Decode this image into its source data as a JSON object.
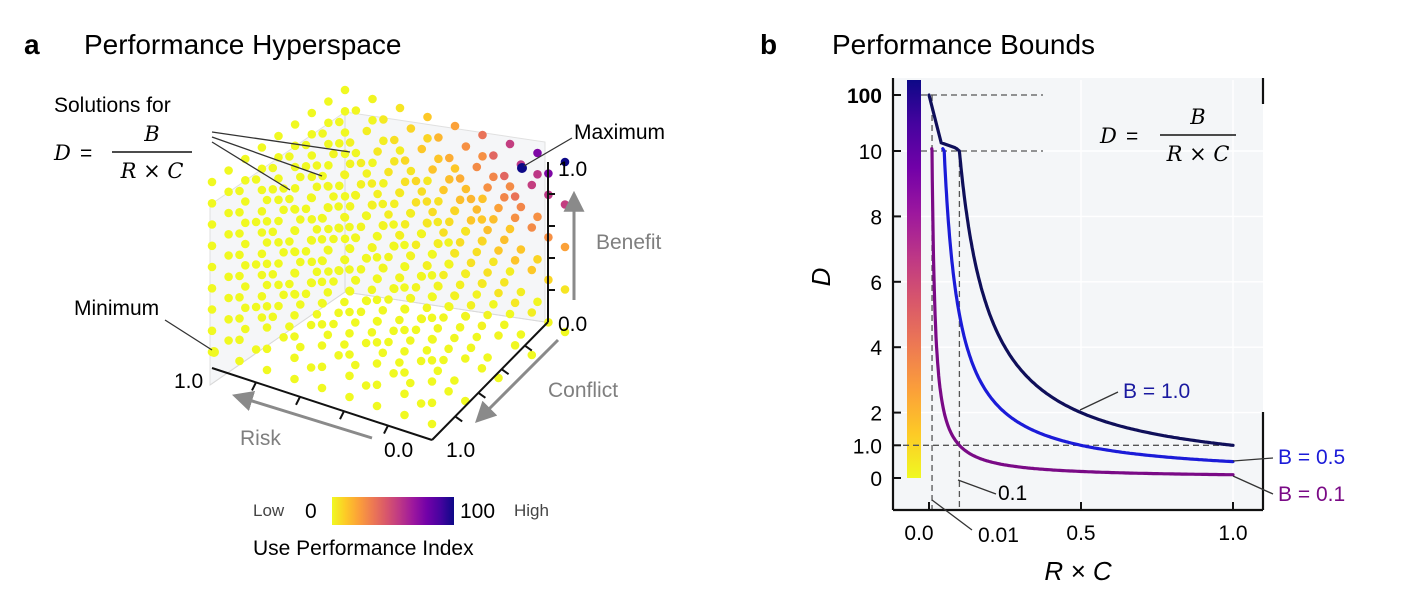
{
  "panel_a": {
    "letter": "a",
    "title": "Performance Hyperspace",
    "solutions_label": "Solutions for",
    "equation": {
      "lhs": "D",
      "eq": "=",
      "num": "B",
      "den": "R × C"
    },
    "maximum_label": "Maximum",
    "minimum_label": "Minimum",
    "axes": {
      "benefit": {
        "label": "Benefit",
        "start": "0.0",
        "end": "1.0"
      },
      "conflict": {
        "label": "Conflict",
        "end": "1.0"
      },
      "risk": {
        "label": "Risk",
        "start": "0.0",
        "end": "1.0"
      }
    },
    "colorbar": {
      "title": "Use Performance Index",
      "low_word": "Low",
      "high_word": "High",
      "min": "0",
      "max": "100",
      "colors": [
        "#f0f921",
        "#fdca26",
        "#fb9f3a",
        "#ed7953",
        "#d8576b",
        "#bd3786",
        "#9c179e",
        "#7201a8",
        "#46039f",
        "#0d0887"
      ]
    }
  },
  "panel_b": {
    "letter": "b",
    "title": "Performance Bounds",
    "equation": {
      "lhs": "D",
      "eq": "=",
      "num": "B",
      "den": "R × C"
    },
    "xlabel": "R × C",
    "ylabel": "D",
    "annotation_01": "0.1",
    "annotation_001": "0.01"
  },
  "chart_data": [
    {
      "type": "scatter",
      "title": "Performance Hyperspace",
      "axes": [
        "Risk",
        "Conflict",
        "Benefit"
      ],
      "range": [
        0.0,
        1.0
      ],
      "grid_points_per_axis": 9,
      "value_formula": "Use Performance Index rises toward the Maximum corner (high Benefit, low Risk, low Conflict); Minimum at high Risk, high Conflict, low Benefit",
      "colormap": "plasma (0 = Low, 100 = High)",
      "labeled_points": [
        {
          "label": "Maximum",
          "risk": 0.0,
          "conflict": 0.0,
          "benefit": 1.0,
          "index": 100
        },
        {
          "label": "Minimum",
          "risk": 1.0,
          "conflict": 1.0,
          "benefit": 0.0,
          "index": 0
        }
      ]
    },
    {
      "type": "line",
      "title": "Performance Bounds",
      "xlabel": "R × C",
      "ylabel": "D",
      "xticks": [
        "0.0",
        "0.01",
        "0.1",
        "0.5",
        "1.0"
      ],
      "yticks": [
        "0",
        "1.0",
        "2",
        "4",
        "6",
        "8",
        "10",
        "100"
      ],
      "xlim": [
        0.0,
        1.0
      ],
      "ylim": [
        0,
        100
      ],
      "scale_note": "y axis linear from 0 to 10 with a compressed break to 100",
      "series": [
        {
          "name": "B = 1.0",
          "color": "#0f0f5a",
          "x": [
            0.01,
            0.02,
            0.05,
            0.1,
            0.2,
            0.3,
            0.5,
            0.7,
            1.0
          ],
          "y": [
            100,
            50,
            20,
            10,
            5,
            3.33,
            2,
            1.43,
            1.0
          ]
        },
        {
          "name": "B = 0.5",
          "color": "#1b1bd8",
          "x": [
            0.005,
            0.01,
            0.02,
            0.05,
            0.1,
            0.2,
            0.3,
            0.5,
            0.7,
            1.0
          ],
          "y": [
            100,
            50,
            25,
            10,
            5,
            2.5,
            1.67,
            1.0,
            0.71,
            0.5
          ]
        },
        {
          "name": "B = 0.1",
          "color": "#7a0a86",
          "x": [
            0.001,
            0.005,
            0.01,
            0.02,
            0.05,
            0.1,
            0.2,
            0.5,
            1.0
          ],
          "y": [
            100,
            20,
            10,
            5,
            2,
            1.0,
            0.5,
            0.2,
            0.1
          ]
        }
      ],
      "reference_lines": [
        {
          "x": 0.01,
          "y_max": 100
        },
        {
          "x": 0.1,
          "y_max": 10
        },
        {
          "y": 1.0
        }
      ],
      "colorbar": "plasma gradient along y axis"
    }
  ]
}
